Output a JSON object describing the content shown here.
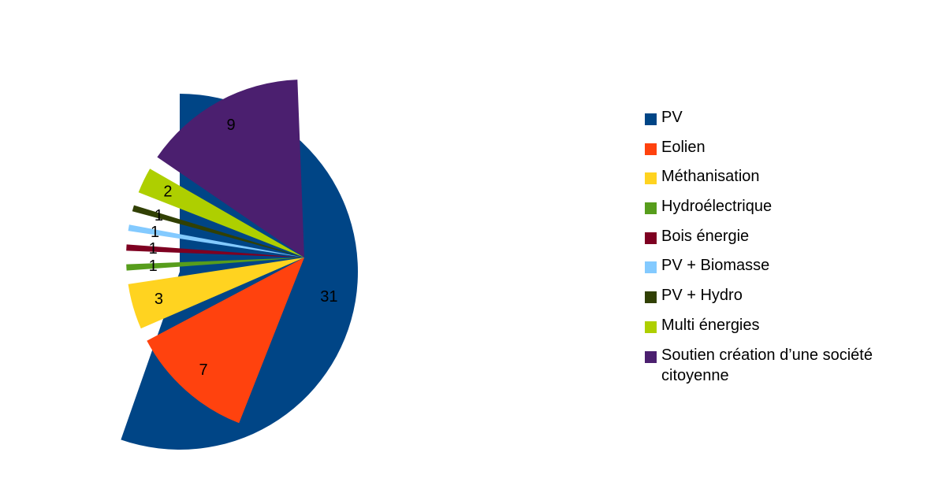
{
  "chart_data": {
    "type": "pie",
    "exploded": true,
    "categories": [
      "PV",
      "Eolien",
      "Méthanisation",
      "Hydroélectrique",
      "Bois énergie",
      "PV + Biomasse",
      "PV + Hydro",
      "Multi énergies",
      "Soutien création d’une société citoyenne"
    ],
    "values": [
      31,
      7,
      3,
      1,
      1,
      1,
      1,
      2,
      9
    ],
    "value_labels": [
      "31",
      "7",
      "3",
      "1",
      "1",
      "1",
      "1",
      "2",
      "9"
    ],
    "colors": [
      "#004586",
      "#ff420e",
      "#ffd320",
      "#579d1c",
      "#7e0021",
      "#83caff",
      "#314004",
      "#aecf00",
      "#4b1f6f"
    ],
    "legend_position": "right",
    "title": ""
  }
}
